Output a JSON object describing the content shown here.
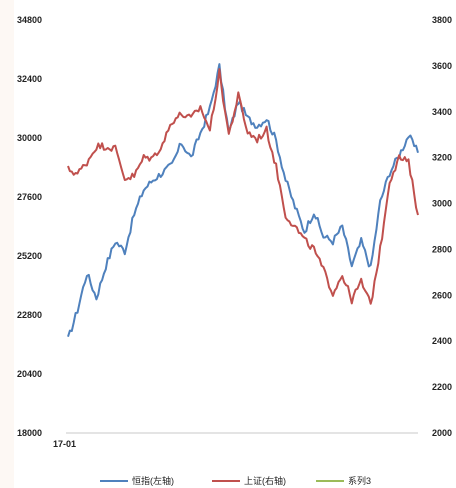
{
  "chart_data": {
    "type": "line",
    "x_start_label": "17-01",
    "y_left": {
      "ticks": [
        "34800",
        "32400",
        "30000",
        "27600",
        "25200",
        "22800",
        "20400",
        "18000"
      ],
      "range": [
        18000,
        34800
      ]
    },
    "y_right": {
      "ticks": [
        "3800",
        "3600",
        "3400",
        "3200",
        "3000",
        "2800",
        "2600",
        "2400",
        "2200",
        "2000"
      ],
      "range": [
        2000,
        3800
      ]
    },
    "legend_position": "bottom",
    "series": [
      {
        "name": "恒指(左轴)",
        "axis": "left",
        "color": "#4f81bd",
        "values": [
          21800,
          23000,
          24500,
          23500,
          24800,
          25800,
          25400,
          26900,
          27900,
          28300,
          28600,
          28900,
          29800,
          29200,
          30200,
          31200,
          32900,
          30200,
          31500,
          30800,
          30500,
          30800,
          29900,
          28300,
          27200,
          26200,
          27000,
          26000,
          25800,
          26400,
          24800,
          25800,
          24700,
          27400,
          28600,
          29300,
          30100,
          29400
        ]
      },
      {
        "name": "上证(右轴)",
        "axis": "right",
        "color": "#c0504d",
        "values": [
          3150,
          3130,
          3180,
          3250,
          3250,
          3240,
          3110,
          3120,
          3200,
          3200,
          3260,
          3360,
          3390,
          3370,
          3420,
          3320,
          3570,
          3300,
          3470,
          3310,
          3280,
          3320,
          3160,
          2950,
          2900,
          2840,
          2800,
          2710,
          2610,
          2690,
          2580,
          2660,
          2560,
          2800,
          3100,
          3200,
          3180,
          2950
        ]
      },
      {
        "name": "系列3",
        "axis": "right",
        "color": "#9bbb59",
        "values": []
      }
    ]
  }
}
